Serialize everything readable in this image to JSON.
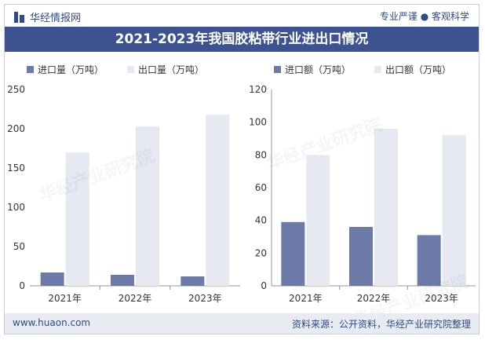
{
  "header": {
    "brand": "华经情报网",
    "tagline": "专业严谨 ● 客观科学",
    "title": "2021-2023年我国胶粘带行业进出口情况"
  },
  "footer": {
    "site": "www.huaon.com",
    "source": "资料来源：公开资料，华经产业研究院整理"
  },
  "watermark": "华经产业研究院",
  "colors": {
    "import": "#6b7aa6",
    "export": "#e6e8f2"
  },
  "chart_data": [
    {
      "type": "bar",
      "categories": [
        "2021年",
        "2022年",
        "2023年"
      ],
      "series": [
        {
          "name": "进口量（万吨）",
          "values": [
            17,
            14,
            12
          ]
        },
        {
          "name": "出口量（万吨）",
          "values": [
            170,
            203,
            218
          ]
        }
      ],
      "ylim": [
        0,
        250
      ],
      "yticks": [
        0,
        50,
        100,
        150,
        200,
        250
      ],
      "legend": "top-left"
    },
    {
      "type": "bar",
      "categories": [
        "2021年",
        "2022年",
        "2023年"
      ],
      "series": [
        {
          "name": "进口额（万吨）",
          "values": [
            39,
            36,
            31
          ]
        },
        {
          "name": "出口额（万吨）",
          "values": [
            80,
            96,
            92
          ]
        }
      ],
      "ylim": [
        0,
        120
      ],
      "yticks": [
        0,
        20,
        40,
        60,
        80,
        100,
        120
      ],
      "legend": "top-left"
    }
  ]
}
